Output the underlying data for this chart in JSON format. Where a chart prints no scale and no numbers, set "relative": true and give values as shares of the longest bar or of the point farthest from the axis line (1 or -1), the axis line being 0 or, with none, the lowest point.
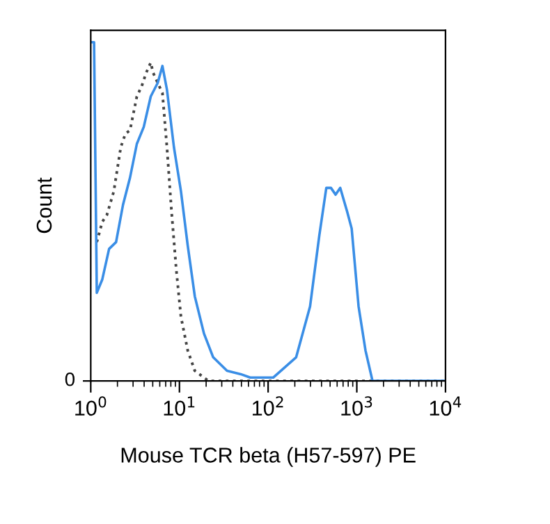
{
  "chart_data": {
    "type": "line",
    "relative": true,
    "log": "x",
    "xlabel": "Mouse TCR beta (H57-597) PE",
    "ylabel": "Count",
    "xlim": [
      1,
      10000
    ],
    "xticks": [
      {
        "value": 1,
        "label": "10$^{0}$"
      },
      {
        "value": 10,
        "label": "10$^{1}$"
      },
      {
        "value": 100,
        "label": "10$^{2}$"
      },
      {
        "value": 1000,
        "label": "10$^{3}$"
      },
      {
        "value": 10000,
        "label": "10$^{4}$"
      }
    ],
    "annotations": [
      "0"
    ],
    "grid": false,
    "series": [
      {
        "color": "#444444",
        "line_style": "dotted",
        "x": [
          1.17,
          1.35,
          1.52,
          1.82,
          2.18,
          2.46,
          2.77,
          3.31,
          3.75,
          4.22,
          4.75,
          5.05,
          5.69,
          6.43,
          7.23,
          8.15,
          9.2,
          10.4,
          12.4,
          14.9,
          21.3,
          9550
        ],
        "values": [
          0.41,
          0.47,
          0.49,
          0.56,
          0.69,
          0.73,
          0.74,
          0.84,
          0.87,
          0.91,
          0.94,
          0.91,
          0.88,
          0.85,
          0.69,
          0.5,
          0.33,
          0.19,
          0.09,
          0.03,
          0,
          0
        ]
      },
      {
        "color": "#3a8ee6",
        "line_style": "solid",
        "x": [
          1,
          1.09,
          1.17,
          1.35,
          1.61,
          1.93,
          2.31,
          2.77,
          3.31,
          3.96,
          4.75,
          5.69,
          6.43,
          7.23,
          8.67,
          10.4,
          12.4,
          14.9,
          18.9,
          24,
          34.4,
          49.2,
          62.7,
          114,
          207,
          297,
          378,
          453,
          511,
          577,
          650,
          778,
          875,
          1047,
          1253,
          1503,
          9550
        ],
        "values": [
          1.0,
          1.0,
          0.26,
          0.3,
          0.39,
          0.41,
          0.52,
          0.6,
          0.7,
          0.75,
          0.84,
          0.88,
          0.93,
          0.86,
          0.69,
          0.56,
          0.4,
          0.25,
          0.14,
          0.07,
          0.03,
          0.02,
          0.01,
          0.01,
          0.07,
          0.22,
          0.43,
          0.57,
          0.57,
          0.55,
          0.57,
          0.5,
          0.45,
          0.22,
          0.09,
          0,
          0
        ]
      }
    ]
  }
}
